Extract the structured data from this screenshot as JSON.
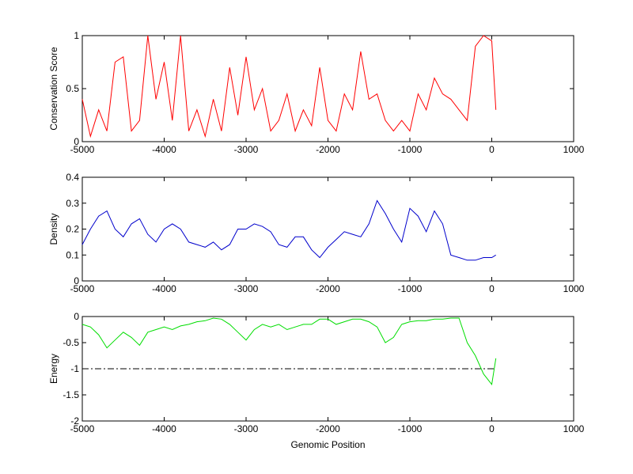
{
  "chart_data": [
    {
      "type": "line",
      "ylabel": "Conservation Score",
      "color": "#ff0000",
      "x": [
        -5000,
        -4900,
        -4800,
        -4700,
        -4600,
        -4500,
        -4400,
        -4300,
        -4200,
        -4100,
        -4000,
        -3900,
        -3800,
        -3700,
        -3600,
        -3500,
        -3400,
        -3300,
        -3200,
        -3100,
        -3000,
        -2900,
        -2800,
        -2700,
        -2600,
        -2500,
        -2400,
        -2300,
        -2200,
        -2100,
        -2000,
        -1900,
        -1800,
        -1700,
        -1600,
        -1500,
        -1400,
        -1300,
        -1200,
        -1100,
        -1000,
        -900,
        -800,
        -700,
        -600,
        -500,
        -400,
        -300,
        -200,
        -100,
        0,
        50
      ],
      "values": [
        0.4,
        0.05,
        0.3,
        0.1,
        0.75,
        0.8,
        0.1,
        0.2,
        1.0,
        0.4,
        0.75,
        0.2,
        1.0,
        0.1,
        0.3,
        0.05,
        0.4,
        0.1,
        0.7,
        0.25,
        0.8,
        0.3,
        0.5,
        0.1,
        0.2,
        0.45,
        0.1,
        0.3,
        0.15,
        0.7,
        0.2,
        0.1,
        0.45,
        0.3,
        0.85,
        0.4,
        0.45,
        0.2,
        0.1,
        0.2,
        0.1,
        0.45,
        0.3,
        0.6,
        0.45,
        0.4,
        0.3,
        0.2,
        0.9,
        1.0,
        0.95,
        0.3
      ],
      "xlim": [
        -5000,
        1000
      ],
      "xticks": [
        -5000,
        -4000,
        -3000,
        -2000,
        -1000,
        0,
        1000
      ],
      "ylim": [
        0,
        1
      ],
      "yticks": [
        0,
        0.5,
        1
      ]
    },
    {
      "type": "line",
      "ylabel": "Density",
      "color": "#0000cc",
      "x": [
        -5000,
        -4900,
        -4800,
        -4700,
        -4600,
        -4500,
        -4400,
        -4300,
        -4200,
        -4100,
        -4000,
        -3900,
        -3800,
        -3700,
        -3600,
        -3500,
        -3400,
        -3300,
        -3200,
        -3100,
        -3000,
        -2900,
        -2800,
        -2700,
        -2600,
        -2500,
        -2400,
        -2300,
        -2200,
        -2100,
        -2000,
        -1900,
        -1800,
        -1700,
        -1600,
        -1500,
        -1400,
        -1300,
        -1200,
        -1100,
        -1000,
        -900,
        -800,
        -700,
        -600,
        -500,
        -400,
        -300,
        -200,
        -100,
        0,
        50
      ],
      "values": [
        0.14,
        0.2,
        0.25,
        0.27,
        0.2,
        0.17,
        0.22,
        0.24,
        0.18,
        0.15,
        0.2,
        0.22,
        0.2,
        0.15,
        0.14,
        0.13,
        0.15,
        0.12,
        0.14,
        0.2,
        0.2,
        0.22,
        0.21,
        0.19,
        0.14,
        0.13,
        0.17,
        0.17,
        0.12,
        0.09,
        0.13,
        0.16,
        0.19,
        0.18,
        0.17,
        0.22,
        0.31,
        0.26,
        0.2,
        0.15,
        0.28,
        0.25,
        0.19,
        0.27,
        0.22,
        0.1,
        0.09,
        0.08,
        0.08,
        0.09,
        0.09,
        0.1
      ],
      "xlim": [
        -5000,
        1000
      ],
      "xticks": [
        -5000,
        -4000,
        -3000,
        -2000,
        -1000,
        0,
        1000
      ],
      "ylim": [
        0,
        0.4
      ],
      "yticks": [
        0,
        0.1,
        0.2,
        0.3,
        0.4
      ]
    },
    {
      "type": "line",
      "ylabel": "Energy",
      "xlabel": "Genomic Position",
      "color": "#00dd00",
      "x": [
        -5000,
        -4900,
        -4800,
        -4700,
        -4600,
        -4500,
        -4400,
        -4300,
        -4200,
        -4100,
        -4000,
        -3900,
        -3800,
        -3700,
        -3600,
        -3500,
        -3400,
        -3300,
        -3200,
        -3100,
        -3000,
        -2900,
        -2800,
        -2700,
        -2600,
        -2500,
        -2400,
        -2300,
        -2200,
        -2100,
        -2000,
        -1900,
        -1800,
        -1700,
        -1600,
        -1500,
        -1400,
        -1300,
        -1200,
        -1100,
        -1000,
        -900,
        -800,
        -700,
        -600,
        -500,
        -400,
        -300,
        -200,
        -100,
        0,
        50
      ],
      "values": [
        -0.15,
        -0.2,
        -0.35,
        -0.6,
        -0.45,
        -0.3,
        -0.4,
        -0.55,
        -0.3,
        -0.25,
        -0.2,
        -0.25,
        -0.18,
        -0.15,
        -0.1,
        -0.08,
        -0.03,
        -0.05,
        -0.15,
        -0.3,
        -0.45,
        -0.25,
        -0.15,
        -0.2,
        -0.15,
        -0.25,
        -0.2,
        -0.15,
        -0.15,
        -0.05,
        -0.05,
        -0.15,
        -0.1,
        -0.05,
        -0.05,
        -0.1,
        -0.2,
        -0.5,
        -0.4,
        -0.15,
        -0.1,
        -0.08,
        -0.08,
        -0.05,
        -0.05,
        -0.03,
        -0.03,
        -0.5,
        -0.75,
        -1.1,
        -1.3,
        -0.8
      ],
      "hline": -1,
      "xlim": [
        -5000,
        1000
      ],
      "xticks": [
        -5000,
        -4000,
        -3000,
        -2000,
        -1000,
        0,
        1000
      ],
      "ylim": [
        -2,
        0
      ],
      "yticks": [
        -2,
        -1.5,
        -1,
        -0.5,
        0
      ]
    }
  ]
}
